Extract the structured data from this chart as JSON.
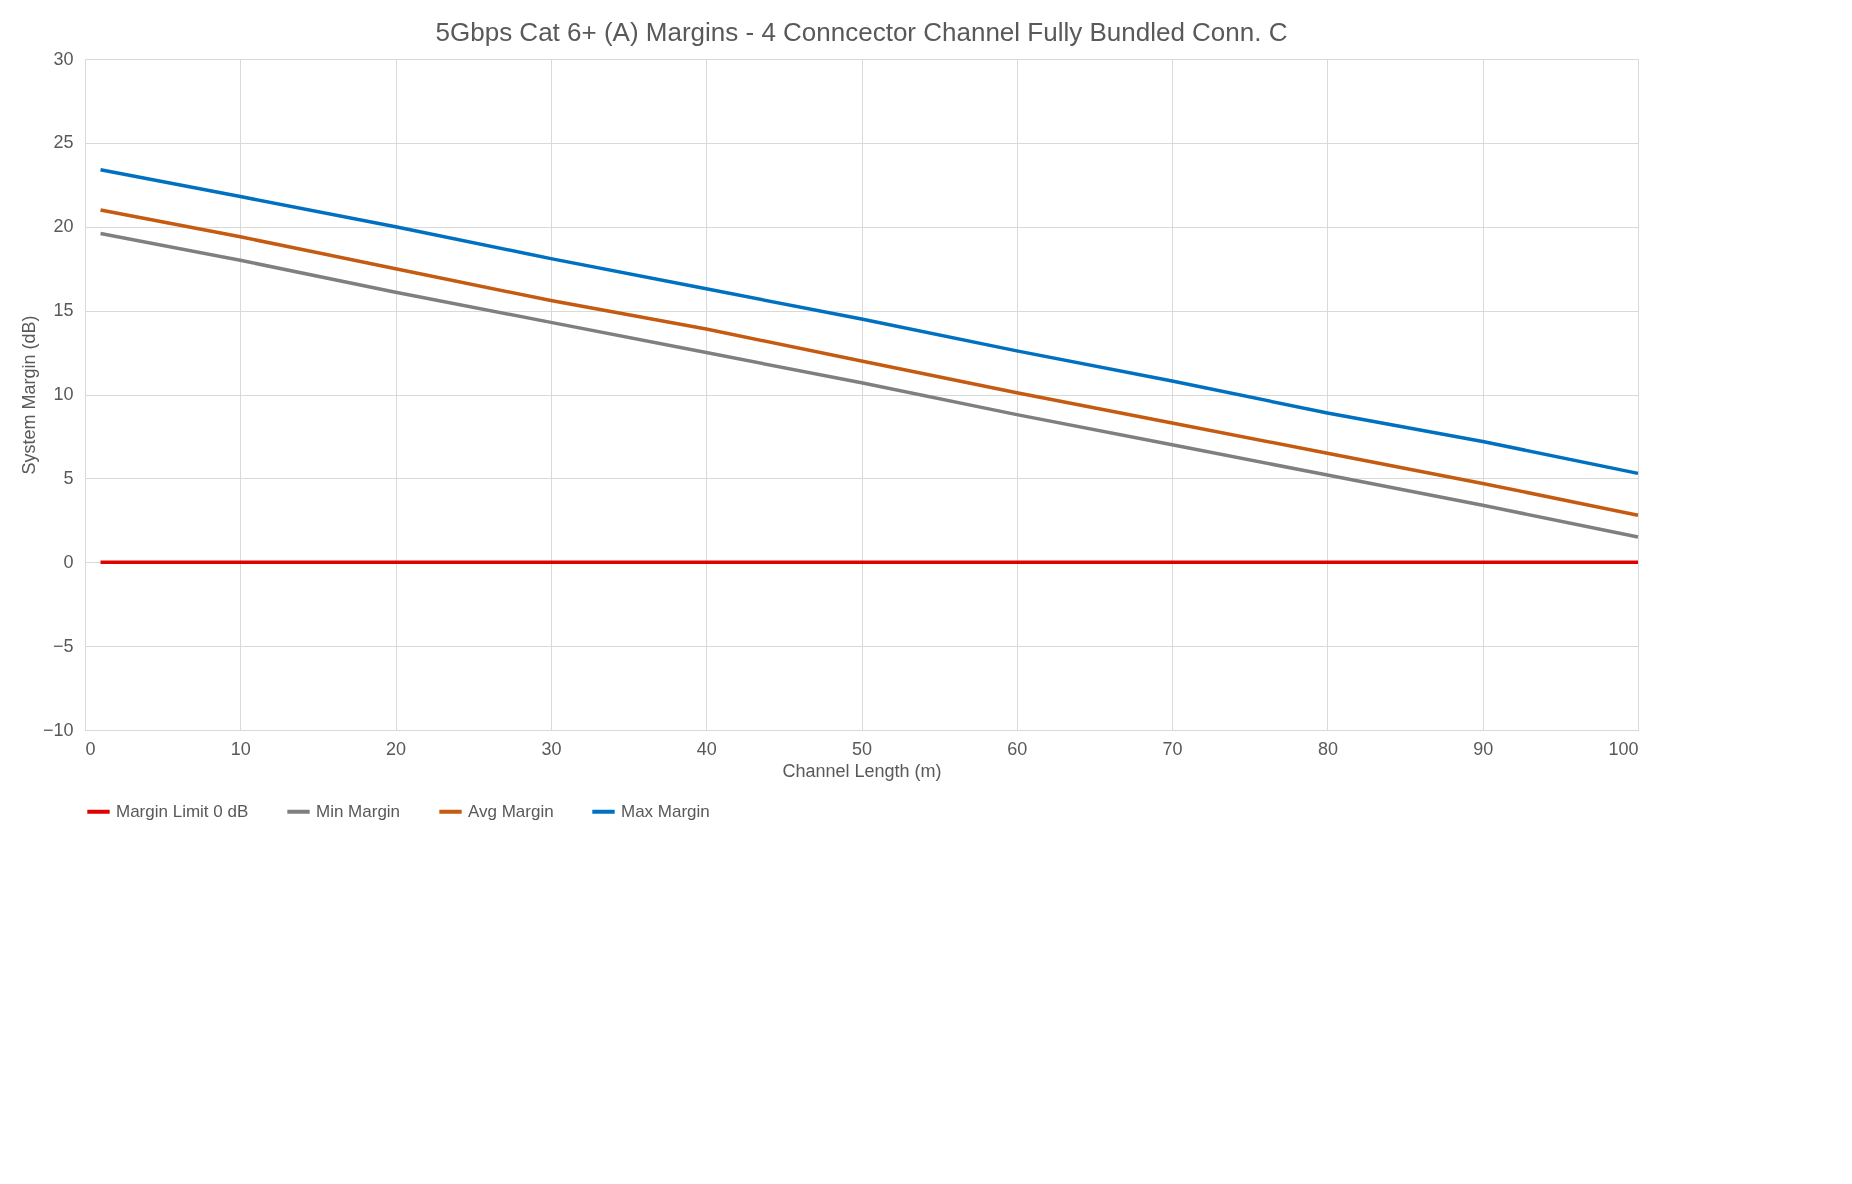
{
  "chart_data": {
    "type": "line",
    "title": "5Gbps Cat 6+ (A) Margins - 4 Conncector Channel Fully Bundled Conn. C",
    "xlabel": "Channel Length (m)",
    "ylabel": "System Margin (dB)",
    "x": [
      1,
      10,
      20,
      30,
      40,
      50,
      60,
      70,
      80,
      90,
      100
    ],
    "series": [
      {
        "name": "Margin Limit 0 dB",
        "color": "#e00000",
        "values": [
          0,
          0,
          0,
          0,
          0,
          0,
          0,
          0,
          0,
          0,
          0
        ]
      },
      {
        "name": "Min Margin",
        "color": "#7f7f7f",
        "values": [
          19.6,
          18.0,
          16.1,
          14.3,
          12.5,
          10.7,
          8.8,
          7.0,
          5.2,
          3.4,
          1.5
        ]
      },
      {
        "name": "Avg Margin",
        "color": "#c55a11",
        "values": [
          21.0,
          19.4,
          17.5,
          15.6,
          13.9,
          12.0,
          10.1,
          8.3,
          6.5,
          4.7,
          2.8
        ]
      },
      {
        "name": "Max Margin",
        "color": "#0070c0",
        "values": [
          23.4,
          21.8,
          20.0,
          18.1,
          16.3,
          14.5,
          12.6,
          10.8,
          8.9,
          7.2,
          5.3
        ]
      }
    ],
    "xlim": [
      0,
      100
    ],
    "xticks": [
      0,
      10,
      20,
      30,
      40,
      50,
      60,
      70,
      80,
      90,
      100
    ],
    "ylim": [
      -10,
      30
    ],
    "yticks": [
      -10,
      -5,
      0,
      5,
      10,
      15,
      20,
      25,
      30
    ],
    "grid": true,
    "legend": "bottom",
    "marker": "none",
    "line_style": "solid"
  }
}
